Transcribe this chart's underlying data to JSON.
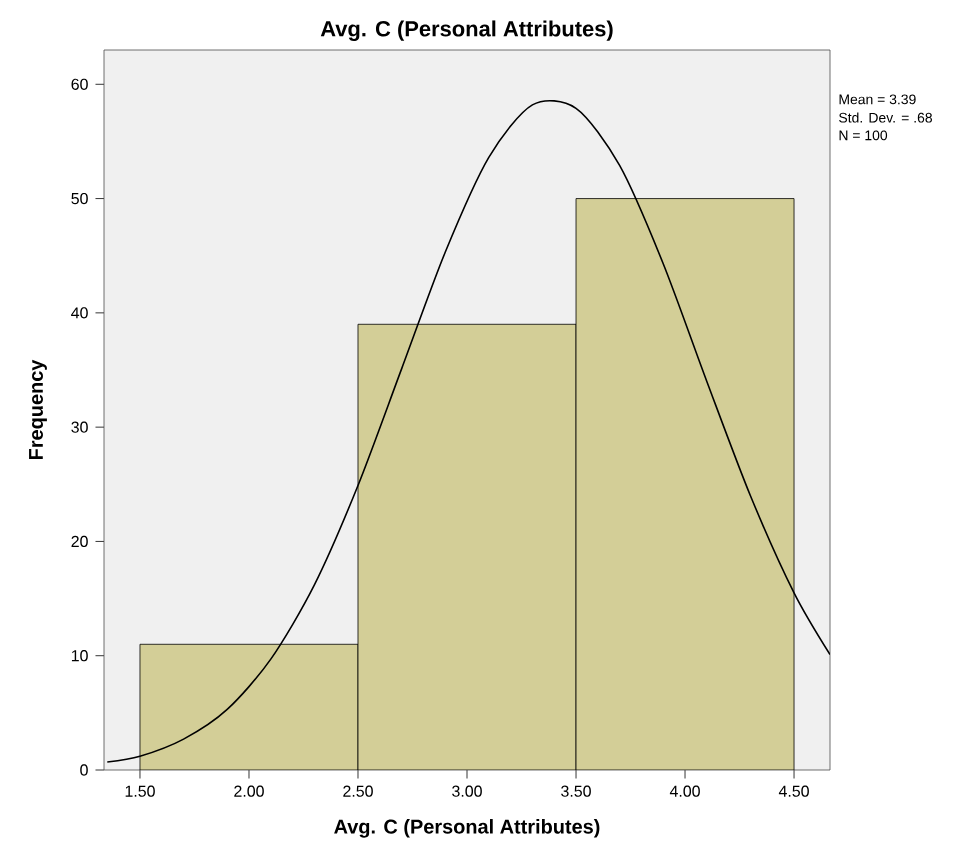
{
  "chart_data": {
    "type": "histogram",
    "title": "Avg. C (Personal Attributes)",
    "xlabel": "Avg. C (Personal Attributes)",
    "ylabel": "Frequency",
    "bins": [
      1.5,
      2.5,
      3.5,
      4.5
    ],
    "values": [
      11,
      39,
      50
    ],
    "color": "#d3ce97",
    "series": [
      {
        "type": "line",
        "color": "#000000",
        "x": [
          1.35,
          1.5,
          1.7,
          1.9,
          2.1,
          2.3,
          2.5,
          2.7,
          2.9,
          3.1,
          3.3,
          3.5,
          3.7,
          3.9,
          4.1,
          4.3,
          4.5,
          4.665
        ],
        "values": [
          0.7,
          1.2,
          2.7,
          5.3,
          9.7,
          16.2,
          24.9,
          35.1,
          45.3,
          53.6,
          58.2,
          57.9,
          52.9,
          44.3,
          34.0,
          24.0,
          15.5,
          10.1
        ]
      }
    ],
    "xlim": [
      1.335,
      4.665
    ],
    "ylim": [
      0,
      63
    ],
    "xticks": [
      {
        "value": 1.5,
        "label": "1.50"
      },
      {
        "value": 2.0,
        "label": "2.00"
      },
      {
        "value": 2.5,
        "label": "2.50"
      },
      {
        "value": 3.0,
        "label": "3.00"
      },
      {
        "value": 3.5,
        "label": "3.50"
      },
      {
        "value": 4.0,
        "label": "4.00"
      },
      {
        "value": 4.5,
        "label": "4.50"
      }
    ],
    "yticks": [
      0,
      10,
      20,
      30,
      40,
      50,
      60
    ],
    "grid": false,
    "annotations": [
      "Mean = 3.39",
      "Std. Dev. = .68",
      "N = 100"
    ]
  }
}
